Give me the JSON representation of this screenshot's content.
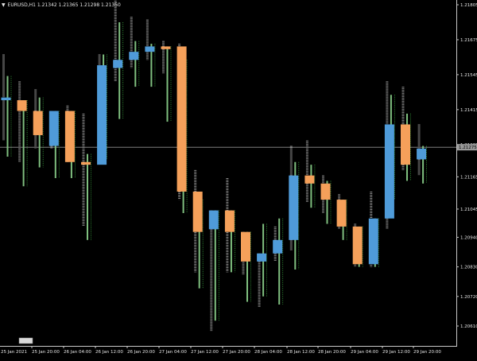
{
  "header": {
    "symbol": "EURUSD,H1",
    "ohlc_text": "1.21342 1.21365 1.21298 1.21350",
    "arrow": "▼"
  },
  "current_price_label": "1.21275",
  "colors": {
    "background": "#000000",
    "axis": "#c8c8c8",
    "text": "#e6e6e6",
    "bull_body": "#4f9bd9",
    "bear_body": "#f5a05a",
    "grey_wick": "#8c8c8c",
    "green_wick": "#7fbf7f",
    "green_dots": "#3cb043",
    "price_line": "#8f8f8f",
    "scroll_marker": "#d9d9d9"
  },
  "chart_data": {
    "type": "candlestick",
    "symbol": "EURUSD",
    "timeframe": "H1",
    "y_ticks": [
      "1.21805",
      "1.21675",
      "1.21545",
      "1.21415",
      "1.21285",
      "1.21165",
      "1.21045",
      "1.20940",
      "1.20830",
      "1.20720",
      "1.20610"
    ],
    "x_ticks": [
      "25 Jan 2021",
      "25 Jan 20:00",
      "26 Jan 04:00",
      "26 Jan 12:00",
      "26 Jan 20:00",
      "27 Jan 04:00",
      "27 Jan 12:00",
      "27 Jan 20:00",
      "28 Jan 04:00",
      "28 Jan 12:00",
      "28 Jan 20:00",
      "29 Jan 04:00",
      "29 Jan 12:00",
      "29 Jan 20:00"
    ],
    "ylim": [
      1.2056,
      1.2185
    ],
    "current_price": 1.21275,
    "candles": [
      {
        "open": 1.2145,
        "close": 1.2146,
        "grey_low": 1.213,
        "grey_high": 1.2162,
        "green_low": 1.2124,
        "green_high": 1.2154
      },
      {
        "open": 1.2145,
        "close": 1.2141,
        "grey_low": 1.2122,
        "grey_high": 1.2152,
        "green_low": 1.2113,
        "green_high": 1.2145
      },
      {
        "open": 1.2141,
        "close": 1.2132,
        "grey_low": 1.2127,
        "grey_high": 1.2149,
        "green_low": 1.212,
        "green_high": 1.2146
      },
      {
        "open": 1.2128,
        "close": 1.2141,
        "grey_low": 1.2127,
        "grey_high": 1.2141,
        "green_low": 1.2116,
        "green_high": 1.2141
      },
      {
        "open": 1.2141,
        "close": 1.2122,
        "grey_low": 1.2122,
        "grey_high": 1.2143,
        "green_low": 1.2116,
        "green_high": 1.2141
      },
      {
        "open": 1.2122,
        "close": 1.2121,
        "grey_low": 1.2098,
        "grey_high": 1.214,
        "green_low": 1.2093,
        "green_high": 1.2125
      },
      {
        "open": 1.2121,
        "close": 1.2158,
        "grey_low": 1.2128,
        "grey_high": 1.2162,
        "green_low": 1.2123,
        "green_high": 1.2162
      },
      {
        "open": 1.2157,
        "close": 1.216,
        "grey_low": 1.2152,
        "grey_high": 1.2182,
        "green_low": 1.2138,
        "green_high": 1.2174
      },
      {
        "open": 1.216,
        "close": 1.2163,
        "grey_low": 1.2157,
        "grey_high": 1.2176,
        "green_low": 1.215,
        "green_high": 1.2167
      },
      {
        "open": 1.2163,
        "close": 1.2165,
        "grey_low": 1.216,
        "grey_high": 1.2175,
        "green_low": 1.215,
        "green_high": 1.2166
      },
      {
        "open": 1.2165,
        "close": 1.2164,
        "grey_low": 1.2155,
        "grey_high": 1.2167,
        "green_low": 1.2137,
        "green_high": 1.2165
      },
      {
        "open": 1.2165,
        "close": 1.2111,
        "grey_low": 1.2108,
        "grey_high": 1.2166,
        "green_low": 1.2103,
        "green_high": 1.216
      },
      {
        "open": 1.2111,
        "close": 1.2096,
        "grey_low": 1.2081,
        "grey_high": 1.2119,
        "green_low": 1.2075,
        "green_high": 1.2108
      },
      {
        "open": 1.2097,
        "close": 1.2104,
        "grey_low": 1.2059,
        "grey_high": 1.2104,
        "green_low": 1.2063,
        "green_high": 1.2104
      },
      {
        "open": 1.2104,
        "close": 1.2096,
        "grey_low": 1.2081,
        "grey_high": 1.2116,
        "green_low": 1.2081,
        "green_high": 1.2104
      },
      {
        "open": 1.2096,
        "close": 1.2085,
        "grey_low": 1.208,
        "grey_high": 1.2096,
        "green_low": 1.207,
        "green_high": 1.2096
      },
      {
        "open": 1.2085,
        "close": 1.2088,
        "grey_low": 1.2068,
        "grey_high": 1.2088,
        "green_low": 1.2072,
        "green_high": 1.2099
      },
      {
        "open": 1.2088,
        "close": 1.2093,
        "grey_low": 1.2085,
        "grey_high": 1.2098,
        "green_low": 1.2069,
        "green_high": 1.2101
      },
      {
        "open": 1.2093,
        "close": 1.2117,
        "grey_low": 1.2089,
        "grey_high": 1.2128,
        "green_low": 1.2082,
        "green_high": 1.2122
      },
      {
        "open": 1.2117,
        "close": 1.2114,
        "grey_low": 1.2107,
        "grey_high": 1.213,
        "green_low": 1.2105,
        "green_high": 1.2121
      },
      {
        "open": 1.2114,
        "close": 1.2108,
        "grey_low": 1.2103,
        "grey_high": 1.2117,
        "green_low": 1.2099,
        "green_high": 1.2115
      },
      {
        "open": 1.2108,
        "close": 1.2098,
        "grey_low": 1.2097,
        "grey_high": 1.211,
        "green_low": 1.2093,
        "green_high": 1.2108
      },
      {
        "open": 1.2098,
        "close": 1.2084,
        "grey_low": 1.2083,
        "grey_high": 1.2099,
        "green_low": 1.2083,
        "green_high": 1.2098
      },
      {
        "open": 1.2084,
        "close": 1.2101,
        "grey_low": 1.2083,
        "grey_high": 1.2111,
        "green_low": 1.2083,
        "green_high": 1.2101
      },
      {
        "open": 1.2101,
        "close": 1.2136,
        "grey_low": 1.2097,
        "grey_high": 1.2152,
        "green_low": 1.2108,
        "green_high": 1.2147
      },
      {
        "open": 1.2136,
        "close": 1.2121,
        "grey_low": 1.2119,
        "grey_high": 1.215,
        "green_low": 1.2115,
        "green_high": 1.214
      },
      {
        "open": 1.2123,
        "close": 1.2127,
        "grey_low": 1.2117,
        "grey_high": 1.2136,
        "green_low": 1.2114,
        "green_high": 1.2128
      }
    ]
  }
}
